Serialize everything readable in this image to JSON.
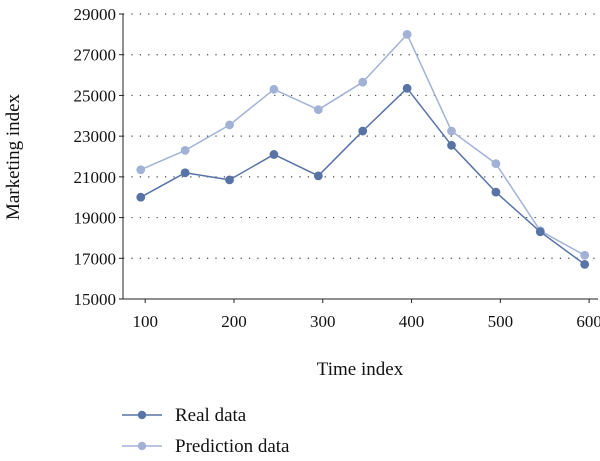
{
  "chart_data": {
    "type": "line",
    "title": "",
    "xlabel": "Time index",
    "ylabel": "Marketing index",
    "xlim": [
      75,
      610
    ],
    "ylim": [
      15000,
      29000
    ],
    "xticks": [
      100,
      200,
      300,
      400,
      500,
      600
    ],
    "yticks": [
      15000,
      17000,
      19000,
      21000,
      23000,
      25000,
      27000,
      29000
    ],
    "x": [
      95,
      145,
      195,
      245,
      295,
      345,
      395,
      445,
      495,
      545,
      595
    ],
    "grid": "horizontal dotted",
    "legend": "bottom",
    "series": [
      {
        "name": "Real data",
        "color": "#5873a6",
        "values": [
          20000,
          21200,
          20850,
          22100,
          21050,
          23250,
          25350,
          22550,
          20250,
          18300,
          16700
        ]
      },
      {
        "name": "Prediction data",
        "color": "#a2b2d7",
        "values": [
          21350,
          22300,
          23550,
          25300,
          24300,
          25650,
          28000,
          23250,
          21650,
          18350,
          17150
        ]
      }
    ]
  }
}
